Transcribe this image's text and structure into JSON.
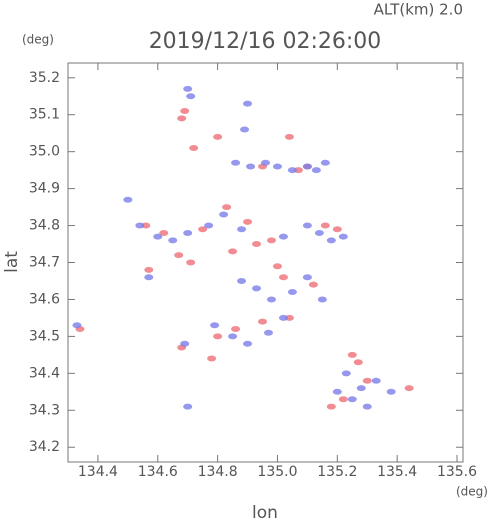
{
  "chart_data": {
    "type": "scatter",
    "title": "2019/12/16 02:26:00",
    "subtitle": "ALT(km) 2.0",
    "y_unit": "(deg)",
    "x_unit": "(deg)",
    "x_label": "lon",
    "y_label": "lat",
    "xlim": [
      134.3,
      135.62
    ],
    "ylim": [
      34.16,
      35.24
    ],
    "xticks": [
      134.4,
      134.6,
      134.8,
      {
        "value": 135,
        "label": "135.0"
      },
      135.2,
      135.4,
      135.6
    ],
    "yticks": [
      34.2,
      34.3,
      34.4,
      34.5,
      34.6,
      34.7,
      34.8,
      34.9,
      {
        "value": 35,
        "label": "35.0"
      },
      35.1,
      35.2
    ],
    "series": [
      {
        "color": "#ee6f78",
        "x": [
          134.68,
          134.69,
          134.8,
          135.04,
          134.72,
          135.07,
          135.1,
          134.95,
          134.56,
          134.62,
          134.75,
          134.9,
          134.98,
          135.16,
          135.2,
          134.67,
          134.57,
          134.85,
          134.93,
          135.0,
          135.02,
          135.12,
          134.8,
          134.86,
          134.95,
          135.04,
          134.78,
          134.34,
          134.68,
          135.25,
          135.27,
          135.22,
          135.44,
          135.3,
          135.18,
          134.71,
          134.83
        ],
        "y": [
          35.09,
          35.11,
          35.04,
          35.04,
          35.01,
          34.95,
          34.96,
          34.96,
          34.8,
          34.78,
          34.79,
          34.81,
          34.76,
          34.8,
          34.79,
          34.72,
          34.68,
          34.73,
          34.75,
          34.69,
          34.66,
          34.64,
          34.5,
          34.52,
          34.54,
          34.55,
          34.44,
          34.52,
          34.47,
          34.45,
          34.43,
          34.33,
          34.36,
          34.38,
          34.31,
          34.7,
          34.85
        ]
      },
      {
        "color": "#7b7ee8",
        "x": [
          134.7,
          134.71,
          134.9,
          134.89,
          134.86,
          134.91,
          134.96,
          135.0,
          135.05,
          135.1,
          135.13,
          135.16,
          134.5,
          134.54,
          134.6,
          134.65,
          134.7,
          134.77,
          134.82,
          134.88,
          135.02,
          135.1,
          135.14,
          135.18,
          135.22,
          134.57,
          134.88,
          134.93,
          134.98,
          135.05,
          135.1,
          135.15,
          134.79,
          134.85,
          134.9,
          134.97,
          135.02,
          134.33,
          134.69,
          134.7,
          135.2,
          135.25,
          135.3,
          135.33,
          135.38,
          135.23,
          135.28
        ],
        "y": [
          35.17,
          35.15,
          35.13,
          35.06,
          34.97,
          34.96,
          34.97,
          34.96,
          34.95,
          34.96,
          34.95,
          34.97,
          34.87,
          34.8,
          34.77,
          34.76,
          34.78,
          34.8,
          34.83,
          34.79,
          34.77,
          34.8,
          34.78,
          34.76,
          34.77,
          34.66,
          34.65,
          34.63,
          34.6,
          34.62,
          34.66,
          34.6,
          34.53,
          34.5,
          34.48,
          34.51,
          34.55,
          34.53,
          34.48,
          34.31,
          34.35,
          34.33,
          34.31,
          34.38,
          34.35,
          34.4,
          34.36
        ]
      }
    ]
  }
}
